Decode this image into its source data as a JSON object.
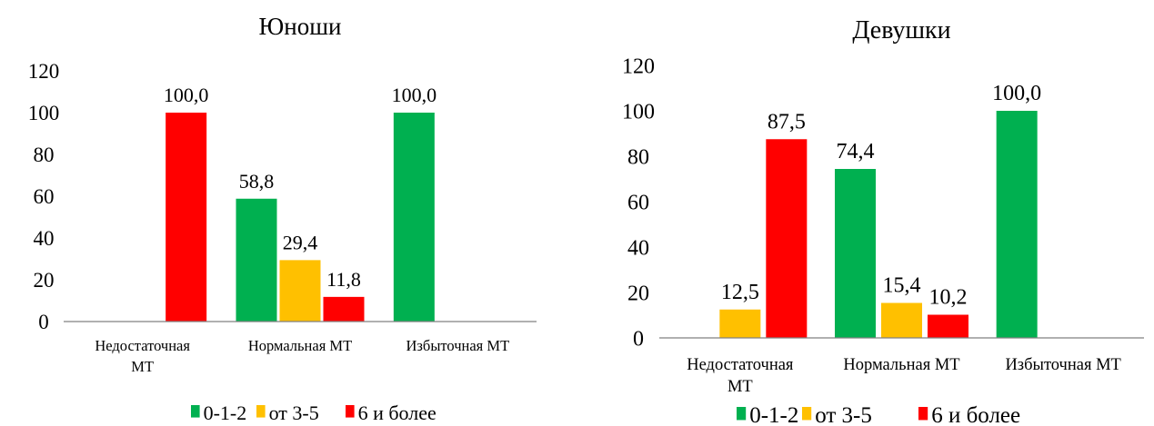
{
  "colors": {
    "g0": "#00b050",
    "g1": "#ffc000",
    "g2": "#ff0000",
    "axis": "#808080"
  },
  "chart_data": [
    {
      "type": "bar",
      "title": "Юноши",
      "categories": [
        "Недостаточная МТ",
        "Нормальная МТ",
        "Избыточная МТ"
      ],
      "series": [
        {
          "name": "0-1-2",
          "values": [
            null,
            58.8,
            100.0
          ],
          "labels": [
            null,
            "58,8",
            "100,0"
          ]
        },
        {
          "name": "от 3-5",
          "values": [
            null,
            29.4,
            null
          ],
          "labels": [
            null,
            "29,4",
            null
          ]
        },
        {
          "name": "6 и более",
          "values": [
            100.0,
            11.8,
            null
          ],
          "labels": [
            "100,0",
            "11,8",
            null
          ]
        }
      ],
      "yticks": [
        "0",
        "20",
        "40",
        "60",
        "80",
        "100",
        "120"
      ],
      "ylim": [
        0,
        120
      ],
      "legend": "bottom"
    },
    {
      "type": "bar",
      "title": "Девушки",
      "categories": [
        "Недостаточная МТ",
        "Нормальная МТ",
        "Избыточная МТ"
      ],
      "series": [
        {
          "name": "0-1-2",
          "values": [
            null,
            74.4,
            100.0
          ],
          "labels": [
            null,
            "74,4",
            "100,0"
          ]
        },
        {
          "name": "от 3-5",
          "values": [
            12.5,
            15.4,
            null
          ],
          "labels": [
            "12,5",
            "15,4",
            null
          ]
        },
        {
          "name": "6 и более",
          "values": [
            87.5,
            10.2,
            null
          ],
          "labels": [
            "87,5",
            "10,2",
            null
          ]
        }
      ],
      "yticks": [
        "0",
        "20",
        "40",
        "60",
        "80",
        "100",
        "120"
      ],
      "ylim": [
        0,
        120
      ],
      "legend": "bottom"
    }
  ]
}
